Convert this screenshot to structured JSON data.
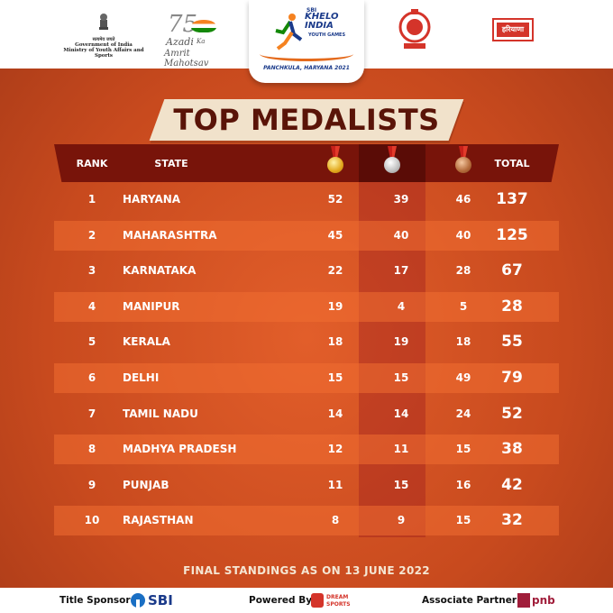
{
  "header": {
    "goi": {
      "line1": "सत्यमेव जयते",
      "line2": "Government of India",
      "line3": "Ministry of Youth Affairs and Sports"
    },
    "aka": {
      "number": "75",
      "azadi": "Azadi",
      "ka": "Ka",
      "mahotsav": "Amrit Mahotsav"
    },
    "khelo": {
      "sponsor": "SBI",
      "title_line1": "KHELO",
      "title_line2": "INDIA",
      "subtitle": "YOUTH GAMES",
      "location": "PANCHKULA, HARYANA 2021"
    },
    "haryana_text": "हरियाणा"
  },
  "title": "TOP MEDALISTS",
  "table": {
    "headers": {
      "rank": "RANK",
      "state": "STATE",
      "total": "TOTAL"
    },
    "medal_icons": [
      "gold-medal-icon",
      "silver-medal-icon",
      "bronze-medal-icon"
    ],
    "rows": [
      {
        "rank": "1",
        "state": "HARYANA",
        "gold": "52",
        "silver": "39",
        "bronze": "46",
        "total": "137"
      },
      {
        "rank": "2",
        "state": "MAHARASHTRA",
        "gold": "45",
        "silver": "40",
        "bronze": "40",
        "total": "125"
      },
      {
        "rank": "3",
        "state": "KARNATAKA",
        "gold": "22",
        "silver": "17",
        "bronze": "28",
        "total": "67"
      },
      {
        "rank": "4",
        "state": "MANIPUR",
        "gold": "19",
        "silver": "4",
        "bronze": "5",
        "total": "28"
      },
      {
        "rank": "5",
        "state": "KERALA",
        "gold": "18",
        "silver": "19",
        "bronze": "18",
        "total": "55"
      },
      {
        "rank": "6",
        "state": "DELHI",
        "gold": "15",
        "silver": "15",
        "bronze": "49",
        "total": "79"
      },
      {
        "rank": "7",
        "state": "TAMIL NADU",
        "gold": "14",
        "silver": "14",
        "bronze": "24",
        "total": "52"
      },
      {
        "rank": "8",
        "state": "MADHYA PRADESH",
        "gold": "12",
        "silver": "11",
        "bronze": "15",
        "total": "38"
      },
      {
        "rank": "9",
        "state": "PUNJAB",
        "gold": "11",
        "silver": "15",
        "bronze": "16",
        "total": "42"
      },
      {
        "rank": "10",
        "state": "RAJASTHAN",
        "gold": "8",
        "silver": "9",
        "bronze": "15",
        "total": "32"
      }
    ]
  },
  "footnote": "FINAL STANDINGS AS ON 13 JUNE 2022",
  "footer": {
    "title_sponsor_label": "Title Sponsor:",
    "title_sponsor_name": "SBI",
    "powered_by_label": "Powered By:",
    "powered_by_name_line1": "DREAM",
    "powered_by_name_line2": "SPORTS",
    "associate_label": "Associate Partner:",
    "associate_name": "pnb"
  },
  "colors": {
    "header_bg": "#78140a",
    "title_text": "#5a1408",
    "banner": "#f1e2cb",
    "background": "#c84a1e"
  }
}
